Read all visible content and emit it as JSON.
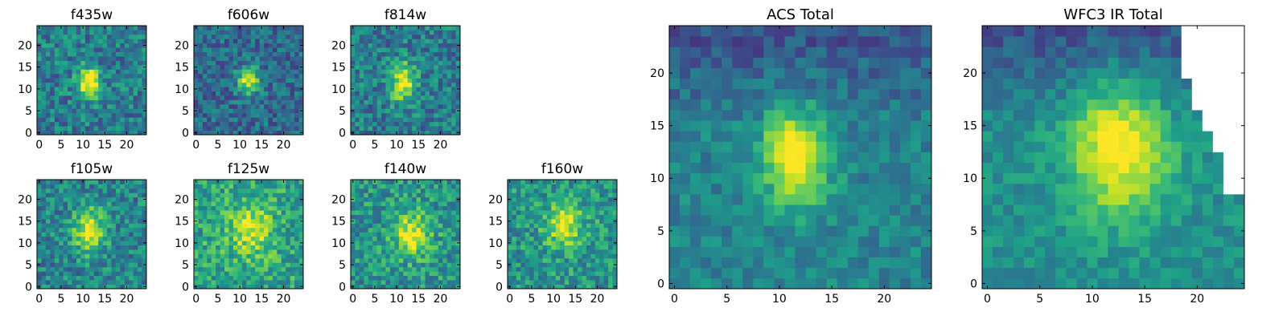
{
  "figure": {
    "background": "#ffffff",
    "colormap": "viridis",
    "colormap_stops": [
      "#440154",
      "#482878",
      "#3e4989",
      "#31688e",
      "#26828e",
      "#1f9e89",
      "#35b779",
      "#6ece58",
      "#b5de2b",
      "#fde725"
    ],
    "missing_color": "#ffffff"
  },
  "chart_data": [
    {
      "type": "heatmap",
      "title": "f435w",
      "grid": false,
      "xlim": [
        0,
        24
      ],
      "ylim": [
        0,
        24
      ],
      "xticks": [
        "0",
        "5",
        "10",
        "15",
        "20"
      ],
      "yticks": [
        "0",
        "5",
        "10",
        "15",
        "20"
      ],
      "blob": {
        "x": 11.5,
        "y": 11.5,
        "sx": 1.8,
        "sy": 2.5,
        "amp": 0.65
      },
      "background_level": 0.42,
      "noise": 0.2,
      "seed": 11,
      "missing": "none"
    },
    {
      "type": "heatmap",
      "title": "f606w",
      "grid": false,
      "xlim": [
        0,
        24
      ],
      "ylim": [
        0,
        24
      ],
      "xticks": [
        "0",
        "5",
        "10",
        "15",
        "20"
      ],
      "yticks": [
        "0",
        "5",
        "10",
        "15",
        "20"
      ],
      "blob": {
        "x": 12,
        "y": 12,
        "sx": 1.8,
        "sy": 2.2,
        "amp": 0.6
      },
      "background_level": 0.35,
      "noise": 0.18,
      "seed": 23,
      "missing": "none"
    },
    {
      "type": "heatmap",
      "title": "f814w",
      "grid": false,
      "xlim": [
        0,
        24
      ],
      "ylim": [
        0,
        24
      ],
      "xticks": [
        "0",
        "5",
        "10",
        "15",
        "20"
      ],
      "yticks": [
        "0",
        "5",
        "10",
        "15",
        "20"
      ],
      "blob": {
        "x": 11.5,
        "y": 11.5,
        "sx": 2,
        "sy": 3.2,
        "amp": 0.55
      },
      "background_level": 0.42,
      "noise": 0.2,
      "seed": 37,
      "missing": "none"
    },
    {
      "type": "heatmap",
      "title": "f105w",
      "grid": false,
      "xlim": [
        0,
        24
      ],
      "ylim": [
        0,
        24
      ],
      "xticks": [
        "0",
        "5",
        "10",
        "15",
        "20"
      ],
      "yticks": [
        "0",
        "5",
        "10",
        "15",
        "20"
      ],
      "blob": {
        "x": 11.5,
        "y": 13,
        "sx": 2.5,
        "sy": 3.5,
        "amp": 0.55
      },
      "background_level": 0.45,
      "noise": 0.2,
      "seed": 41,
      "missing": "none"
    },
    {
      "type": "heatmap",
      "title": "f125w",
      "grid": false,
      "xlim": [
        0,
        24
      ],
      "ylim": [
        0,
        24
      ],
      "xticks": [
        "0",
        "5",
        "10",
        "15",
        "20"
      ],
      "yticks": [
        "0",
        "5",
        "10",
        "15",
        "20"
      ],
      "blob": {
        "x": 12.5,
        "y": 13,
        "sx": 3.5,
        "sy": 4.5,
        "amp": 0.35
      },
      "background_level": 0.58,
      "noise": 0.2,
      "seed": 53,
      "missing": "none"
    },
    {
      "type": "heatmap",
      "title": "f140w",
      "grid": false,
      "xlim": [
        0,
        24
      ],
      "ylim": [
        0,
        24
      ],
      "xticks": [
        "0",
        "5",
        "10",
        "15",
        "20"
      ],
      "yticks": [
        "0",
        "5",
        "10",
        "15",
        "20"
      ],
      "blob": {
        "x": 13.5,
        "y": 12,
        "sx": 3,
        "sy": 3.5,
        "amp": 0.45
      },
      "background_level": 0.52,
      "noise": 0.2,
      "seed": 67,
      "missing": "none"
    },
    {
      "type": "heatmap",
      "title": "f160w",
      "grid": false,
      "xlim": [
        0,
        24
      ],
      "ylim": [
        0,
        24
      ],
      "xticks": [
        "0",
        "5",
        "10",
        "15",
        "20"
      ],
      "yticks": [
        "0",
        "5",
        "10",
        "15",
        "20"
      ],
      "blob": {
        "x": 12.5,
        "y": 14,
        "sx": 3,
        "sy": 3.5,
        "amp": 0.45
      },
      "background_level": 0.52,
      "noise": 0.2,
      "seed": 79,
      "missing": "none"
    },
    {
      "type": "heatmap",
      "title": "ACS Total",
      "grid": false,
      "xlim": [
        0,
        24
      ],
      "ylim": [
        0,
        24
      ],
      "xticks": [
        "0",
        "5",
        "10",
        "15",
        "20"
      ],
      "yticks": [
        "0",
        "5",
        "10",
        "15",
        "20"
      ],
      "blob": {
        "x": 11.5,
        "y": 12,
        "sx": 2.2,
        "sy": 3.2,
        "amp": 0.6
      },
      "background_level": 0.45,
      "gradient_top": -0.2,
      "noise": 0.12,
      "seed": 89,
      "missing": "none"
    },
    {
      "type": "heatmap",
      "title": "WFC3 IR Total",
      "grid": false,
      "xlim": [
        0,
        24
      ],
      "ylim": [
        0,
        24
      ],
      "xticks": [
        "0",
        "5",
        "10",
        "15",
        "20"
      ],
      "yticks": [
        "0",
        "5",
        "10",
        "15",
        "20"
      ],
      "blob": {
        "x": 12.5,
        "y": 13,
        "sx": 3.2,
        "sy": 4.5,
        "amp": 0.55
      },
      "background_level": 0.5,
      "gradient_top": -0.25,
      "noise": 0.1,
      "seed": 97,
      "missing": "upper-right"
    }
  ]
}
